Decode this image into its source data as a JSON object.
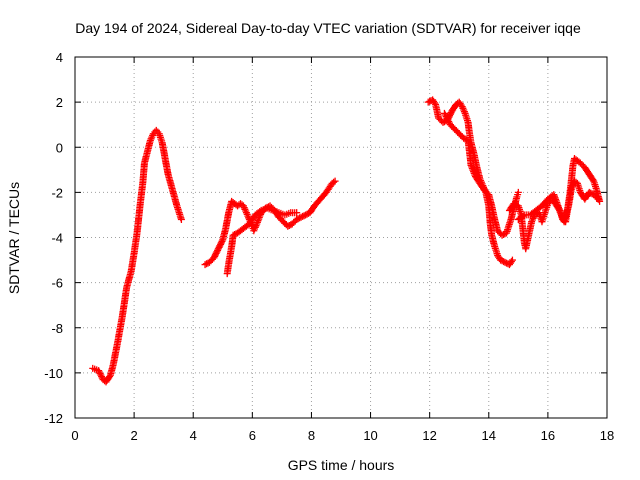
{
  "chart_data": {
    "type": "scatter",
    "title": "Day 194 of 2024, Sidereal Day-to-day VTEC variation (SDTVAR) for receiver iqqe",
    "xlabel": "GPS time / hours",
    "ylabel": "SDTVAR / TECUs",
    "xlim": [
      0,
      18
    ],
    "ylim": [
      -12,
      4
    ],
    "xticks": [
      0,
      2,
      4,
      6,
      8,
      10,
      12,
      14,
      16,
      18
    ],
    "yticks": [
      -12,
      -10,
      -8,
      -6,
      -4,
      -2,
      0,
      2,
      4
    ],
    "grid": true,
    "marker": "+",
    "color": "#ff0000",
    "series": [
      {
        "name": "SDTVAR",
        "segments": [
          [
            [
              0.6,
              -9.8
            ],
            [
              0.8,
              -9.9
            ],
            [
              0.95,
              -10.3
            ],
            [
              1.05,
              -10.4
            ],
            [
              1.2,
              -10.1
            ],
            [
              1.3,
              -9.6
            ],
            [
              1.45,
              -8.6
            ],
            [
              1.6,
              -7.5
            ],
            [
              1.75,
              -6.2
            ],
            [
              1.9,
              -5.5
            ],
            [
              2.0,
              -4.7
            ],
            [
              2.1,
              -3.8
            ],
            [
              2.2,
              -2.6
            ],
            [
              2.3,
              -1.5
            ],
            [
              2.35,
              -0.7
            ],
            [
              2.45,
              -0.2
            ],
            [
              2.55,
              0.3
            ],
            [
              2.65,
              0.6
            ],
            [
              2.75,
              0.75
            ],
            [
              2.85,
              0.6
            ],
            [
              2.95,
              0.2
            ],
            [
              3.05,
              -0.5
            ],
            [
              3.15,
              -1.2
            ],
            [
              3.3,
              -1.9
            ],
            [
              3.45,
              -2.6
            ],
            [
              3.6,
              -3.2
            ]
          ],
          [
            [
              4.4,
              -5.2
            ],
            [
              4.55,
              -5.1
            ],
            [
              4.7,
              -4.9
            ],
            [
              4.85,
              -4.5
            ],
            [
              5.0,
              -4.1
            ],
            [
              5.1,
              -3.6
            ],
            [
              5.2,
              -2.9
            ],
            [
              5.3,
              -2.4
            ],
            [
              5.4,
              -2.5
            ],
            [
              5.5,
              -2.6
            ],
            [
              5.6,
              -2.5
            ],
            [
              5.7,
              -2.6
            ],
            [
              5.8,
              -2.9
            ],
            [
              5.9,
              -3.2
            ],
            [
              6.0,
              -3.5
            ],
            [
              6.05,
              -3.7
            ],
            [
              6.15,
              -3.4
            ],
            [
              6.3,
              -2.9
            ],
            [
              6.45,
              -2.7
            ],
            [
              6.6,
              -2.6
            ],
            [
              6.75,
              -2.8
            ],
            [
              6.9,
              -3.1
            ],
            [
              7.05,
              -3.3
            ],
            [
              7.2,
              -3.5
            ],
            [
              7.35,
              -3.4
            ],
            [
              7.5,
              -3.2
            ],
            [
              7.65,
              -3.1
            ],
            [
              7.8,
              -3.0
            ],
            [
              7.95,
              -2.9
            ],
            [
              8.1,
              -2.6
            ],
            [
              8.3,
              -2.3
            ],
            [
              8.5,
              -2.0
            ],
            [
              8.7,
              -1.6
            ],
            [
              8.8,
              -1.5
            ]
          ],
          [
            [
              5.15,
              -5.6
            ],
            [
              5.22,
              -5.0
            ],
            [
              5.3,
              -4.4
            ],
            [
              5.35,
              -3.9
            ],
            [
              5.5,
              -3.8
            ],
            [
              5.7,
              -3.6
            ],
            [
              5.9,
              -3.4
            ],
            [
              6.1,
              -3.0
            ],
            [
              6.3,
              -2.8
            ],
            [
              6.5,
              -2.7
            ],
            [
              6.7,
              -2.8
            ],
            [
              6.9,
              -2.9
            ],
            [
              7.1,
              -3.0
            ],
            [
              7.3,
              -2.9
            ],
            [
              7.5,
              -2.9
            ]
          ],
          [
            [
              11.95,
              2.0
            ],
            [
              12.1,
              2.1
            ],
            [
              12.2,
              1.9
            ],
            [
              12.3,
              1.3
            ],
            [
              12.45,
              1.1
            ],
            [
              12.6,
              1.2
            ],
            [
              12.75,
              1.6
            ],
            [
              12.9,
              1.9
            ],
            [
              13.0,
              2.0
            ],
            [
              13.1,
              1.8
            ],
            [
              13.2,
              1.5
            ],
            [
              13.3,
              1.1
            ],
            [
              13.35,
              0.6
            ],
            [
              13.4,
              0.2
            ],
            [
              13.5,
              -0.3
            ],
            [
              13.6,
              -0.9
            ],
            [
              13.7,
              -1.4
            ],
            [
              13.8,
              -1.7
            ],
            [
              13.9,
              -2.0
            ],
            [
              14.0,
              -2.6
            ],
            [
              14.05,
              -3.4
            ],
            [
              14.1,
              -3.9
            ],
            [
              14.2,
              -4.4
            ],
            [
              14.3,
              -4.8
            ],
            [
              14.4,
              -5.0
            ],
            [
              14.55,
              -5.1
            ],
            [
              14.7,
              -5.2
            ],
            [
              14.8,
              -5.0
            ]
          ],
          [
            [
              12.5,
              1.5
            ],
            [
              12.7,
              1.0
            ],
            [
              12.85,
              0.8
            ],
            [
              13.0,
              0.6
            ],
            [
              13.15,
              0.4
            ],
            [
              13.3,
              0.3
            ],
            [
              13.4,
              -0.8
            ],
            [
              13.55,
              -1.3
            ],
            [
              13.7,
              -1.6
            ],
            [
              13.85,
              -1.9
            ],
            [
              14.0,
              -2.1
            ],
            [
              14.1,
              -2.6
            ],
            [
              14.2,
              -3.2
            ],
            [
              14.3,
              -3.7
            ],
            [
              14.45,
              -3.9
            ],
            [
              14.6,
              -3.8
            ],
            [
              14.75,
              -3.2
            ],
            [
              14.85,
              -2.7
            ],
            [
              14.95,
              -2.2
            ],
            [
              15.0,
              -2.0
            ]
          ],
          [
            [
              14.7,
              -2.8
            ],
            [
              14.85,
              -2.5
            ],
            [
              15.0,
              -2.6
            ],
            [
              15.1,
              -3.0
            ],
            [
              15.15,
              -3.6
            ],
            [
              15.2,
              -4.2
            ],
            [
              15.25,
              -4.5
            ],
            [
              15.35,
              -3.9
            ],
            [
              15.45,
              -3.3
            ],
            [
              15.55,
              -3.0
            ],
            [
              15.7,
              -2.9
            ],
            [
              15.8,
              -3.3
            ],
            [
              15.9,
              -2.9
            ],
            [
              16.0,
              -2.5
            ],
            [
              16.15,
              -2.3
            ],
            [
              16.25,
              -2.5
            ],
            [
              16.4,
              -2.8
            ],
            [
              16.5,
              -3.2
            ],
            [
              16.6,
              -3.3
            ],
            [
              16.65,
              -2.9
            ],
            [
              16.75,
              -2.0
            ],
            [
              16.8,
              -1.4
            ],
            [
              16.85,
              -0.8
            ],
            [
              16.9,
              -0.5
            ],
            [
              17.0,
              -0.6
            ],
            [
              17.1,
              -0.7
            ],
            [
              17.25,
              -0.9
            ],
            [
              17.4,
              -1.2
            ],
            [
              17.55,
              -1.5
            ],
            [
              17.65,
              -1.9
            ],
            [
              17.75,
              -2.4
            ]
          ],
          [
            [
              15.0,
              -3.2
            ],
            [
              15.2,
              -3.0
            ],
            [
              15.4,
              -3.0
            ],
            [
              15.6,
              -2.8
            ],
            [
              15.8,
              -2.6
            ],
            [
              16.0,
              -2.3
            ],
            [
              16.2,
              -2.1
            ],
            [
              16.4,
              -2.8
            ],
            [
              16.55,
              -3.3
            ],
            [
              16.7,
              -2.6
            ],
            [
              16.8,
              -1.8
            ],
            [
              16.9,
              -1.5
            ],
            [
              17.0,
              -1.6
            ],
            [
              17.1,
              -2.0
            ],
            [
              17.25,
              -2.3
            ],
            [
              17.4,
              -2.0
            ],
            [
              17.55,
              -2.1
            ],
            [
              17.7,
              -2.3
            ]
          ]
        ]
      }
    ]
  }
}
